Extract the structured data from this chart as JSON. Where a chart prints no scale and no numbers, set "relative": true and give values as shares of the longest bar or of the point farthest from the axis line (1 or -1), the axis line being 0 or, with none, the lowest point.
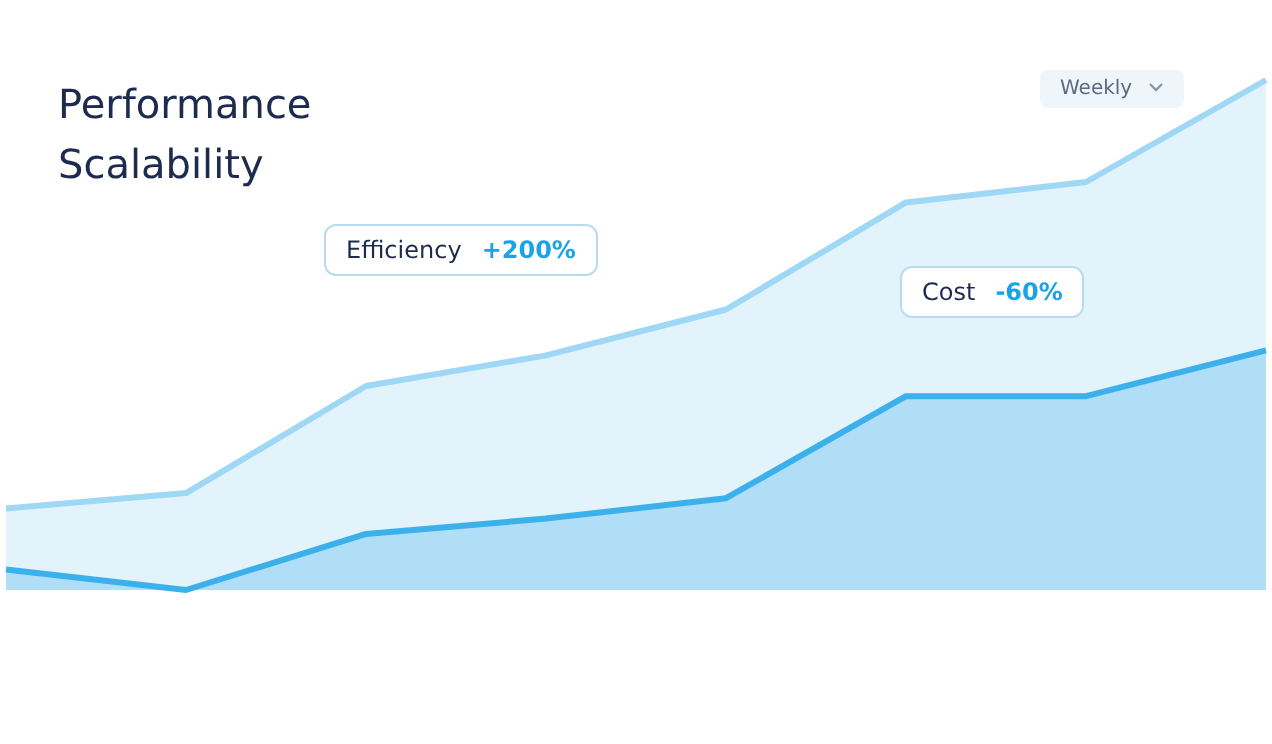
{
  "chart_data": {
    "type": "area",
    "title": "Performance Scalability",
    "relative": true,
    "categories": [
      null,
      null,
      null,
      null,
      null,
      null,
      null,
      null
    ],
    "series": [
      {
        "color": "#9fd8f5",
        "values": [
          0.16,
          0.19,
          0.4,
          0.46,
          0.55,
          0.76,
          0.8,
          1.0
        ]
      },
      {
        "color": "#3bb0ea",
        "values": [
          0.04,
          0.0,
          0.11,
          0.14,
          0.18,
          0.38,
          0.38,
          0.47
        ]
      }
    ],
    "annotations": [
      "Efficiency +200%",
      "Cost -60%",
      "Weekly"
    ],
    "grid": false,
    "marker": "none",
    "line_style": "solid"
  }
}
